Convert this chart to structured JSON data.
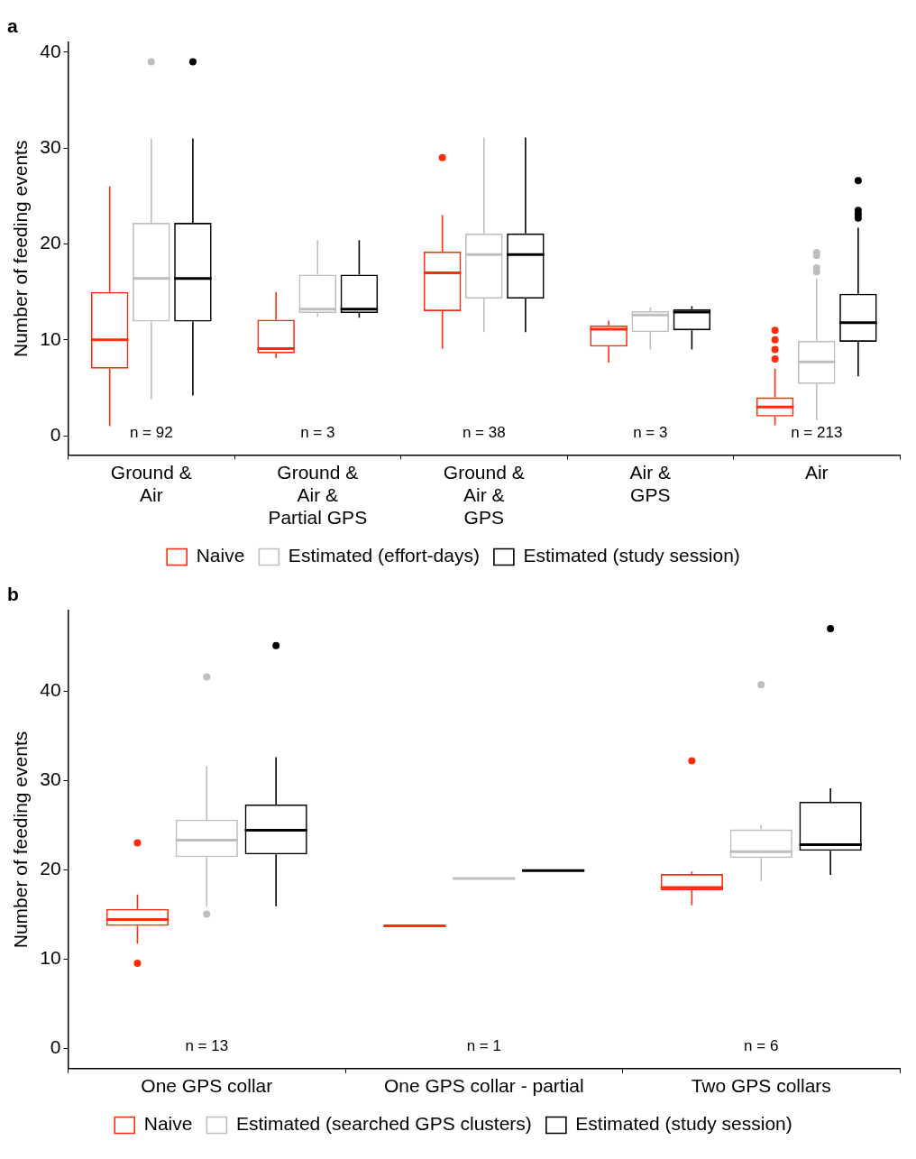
{
  "chart_data": [
    {
      "type": "box",
      "title": "a",
      "ylabel": "Number of feeding events",
      "categories": [
        "Ground &\nAir",
        "Ground &\nAir &\nPartial GPS",
        "Ground &\nAir &\nGPS",
        "Air &\nGPS",
        "Air"
      ],
      "ylim": [
        -2,
        41
      ],
      "yticks": [
        0,
        10,
        20,
        30,
        40
      ],
      "grid": false,
      "legend": "bottom",
      "series": [
        {
          "name": "Naive",
          "color": "#fc2c0c",
          "boxes": [
            {
              "low": 1,
              "q1": 7,
              "median": 10,
              "q3": 15,
              "high": 26
            },
            {
              "low": 8.1,
              "q1": 8.6,
              "median": 9.1,
              "q3": 12.1,
              "high": 15
            },
            {
              "low": 9.1,
              "q1": 13,
              "median": 17,
              "q3": 19.2,
              "high": 23,
              "outliers": [
                29
              ]
            },
            {
              "low": 7.6,
              "q1": 9.3,
              "median": 11.1,
              "q3": 11.5,
              "high": 12
            },
            {
              "low": 1.1,
              "q1": 2,
              "median": 3,
              "q3": 4,
              "high": 7,
              "outliers": [
                8,
                9,
                10,
                11
              ]
            }
          ]
        },
        {
          "name": "Estimated (effort-days)",
          "color": "#bebebe",
          "boxes": [
            {
              "low": 3.8,
              "q1": 11.9,
              "median": 16.4,
              "q3": 22.2,
              "high": 31,
              "outliers": [
                39
              ]
            },
            {
              "low": 12.4,
              "q1": 12.8,
              "median": 13.2,
              "q3": 16.8,
              "high": 20.4
            },
            {
              "low": 10.8,
              "q1": 14.3,
              "median": 18.9,
              "q3": 21.1,
              "high": 31.1
            },
            {
              "low": 9,
              "q1": 10.8,
              "median": 12.6,
              "q3": 13,
              "high": 13.4
            },
            {
              "low": 1.6,
              "q1": 5.4,
              "median": 7.7,
              "q3": 9.9,
              "high": 16.4,
              "outliers": [
                17.1,
                17.5,
                18.8,
                19.1
              ]
            }
          ]
        },
        {
          "name": "Estimated (study session)",
          "color": "#000000",
          "boxes": [
            {
              "low": 4.2,
              "q1": 11.9,
              "median": 16.4,
              "q3": 22.2,
              "high": 31,
              "outliers": [
                39
              ]
            },
            {
              "low": 12.3,
              "q1": 12.8,
              "median": 13.2,
              "q3": 16.8,
              "high": 20.4
            },
            {
              "low": 10.8,
              "q1": 14.3,
              "median": 18.9,
              "q3": 21.1,
              "high": 31.1
            },
            {
              "low": 9,
              "q1": 11,
              "median": 12.9,
              "q3": 13.2,
              "high": 13.5
            },
            {
              "low": 6.2,
              "q1": 9.8,
              "median": 11.8,
              "q3": 14.8,
              "high": 21.7,
              "outliers": [
                22.7,
                23.1,
                23.5,
                26.6
              ]
            }
          ]
        }
      ],
      "annotations": [
        "n = 92",
        "n = 3",
        "n = 38",
        "n = 3",
        "n = 213"
      ]
    },
    {
      "type": "box",
      "title": "b",
      "ylabel": "Number of feeding events",
      "categories": [
        "One GPS collar",
        "One GPS collar - partial",
        "Two GPS collars"
      ],
      "ylim": [
        -2.3,
        49
      ],
      "yticks": [
        0,
        10,
        20,
        30,
        40
      ],
      "grid": false,
      "legend": "bottom",
      "series": [
        {
          "name": "Naive",
          "color": "#fc2c0c",
          "boxes": [
            {
              "low": 11.7,
              "q1": 13.7,
              "median": 14.4,
              "q3": 15.6,
              "high": 17.2,
              "outliers": [
                9.5,
                23
              ]
            },
            {
              "low": 13.7,
              "q1": 13.7,
              "median": 13.7,
              "q3": 13.7,
              "high": 13.7
            },
            {
              "low": 16,
              "q1": 17.7,
              "median": 18,
              "q3": 19.5,
              "high": 19.8,
              "outliers": [
                32.2
              ]
            }
          ]
        },
        {
          "name": "Estimated (searched GPS clusters)",
          "color": "#bebebe",
          "boxes": [
            {
              "low": 15.9,
              "q1": 21.4,
              "median": 23.3,
              "q3": 25.6,
              "high": 31.6,
              "outliers": [
                15,
                41.6
              ]
            },
            {
              "low": 19,
              "q1": 19,
              "median": 19,
              "q3": 19,
              "high": 19
            },
            {
              "low": 18.7,
              "q1": 21.3,
              "median": 22,
              "q3": 24.5,
              "high": 25,
              "outliers": [
                40.7
              ]
            }
          ]
        },
        {
          "name": "Estimated (study session)",
          "color": "#000000",
          "boxes": [
            {
              "low": 15.9,
              "q1": 21.7,
              "median": 24.4,
              "q3": 27.3,
              "high": 32.6,
              "outliers": [
                45.1
              ]
            },
            {
              "low": 19.9,
              "q1": 19.9,
              "median": 19.9,
              "q3": 19.9,
              "high": 19.9
            },
            {
              "low": 19.4,
              "q1": 22.1,
              "median": 22.8,
              "q3": 27.6,
              "high": 29.1,
              "outliers": [
                47
              ]
            }
          ]
        }
      ],
      "annotations": [
        "n = 13",
        "n = 1",
        "n = 6"
      ]
    }
  ]
}
